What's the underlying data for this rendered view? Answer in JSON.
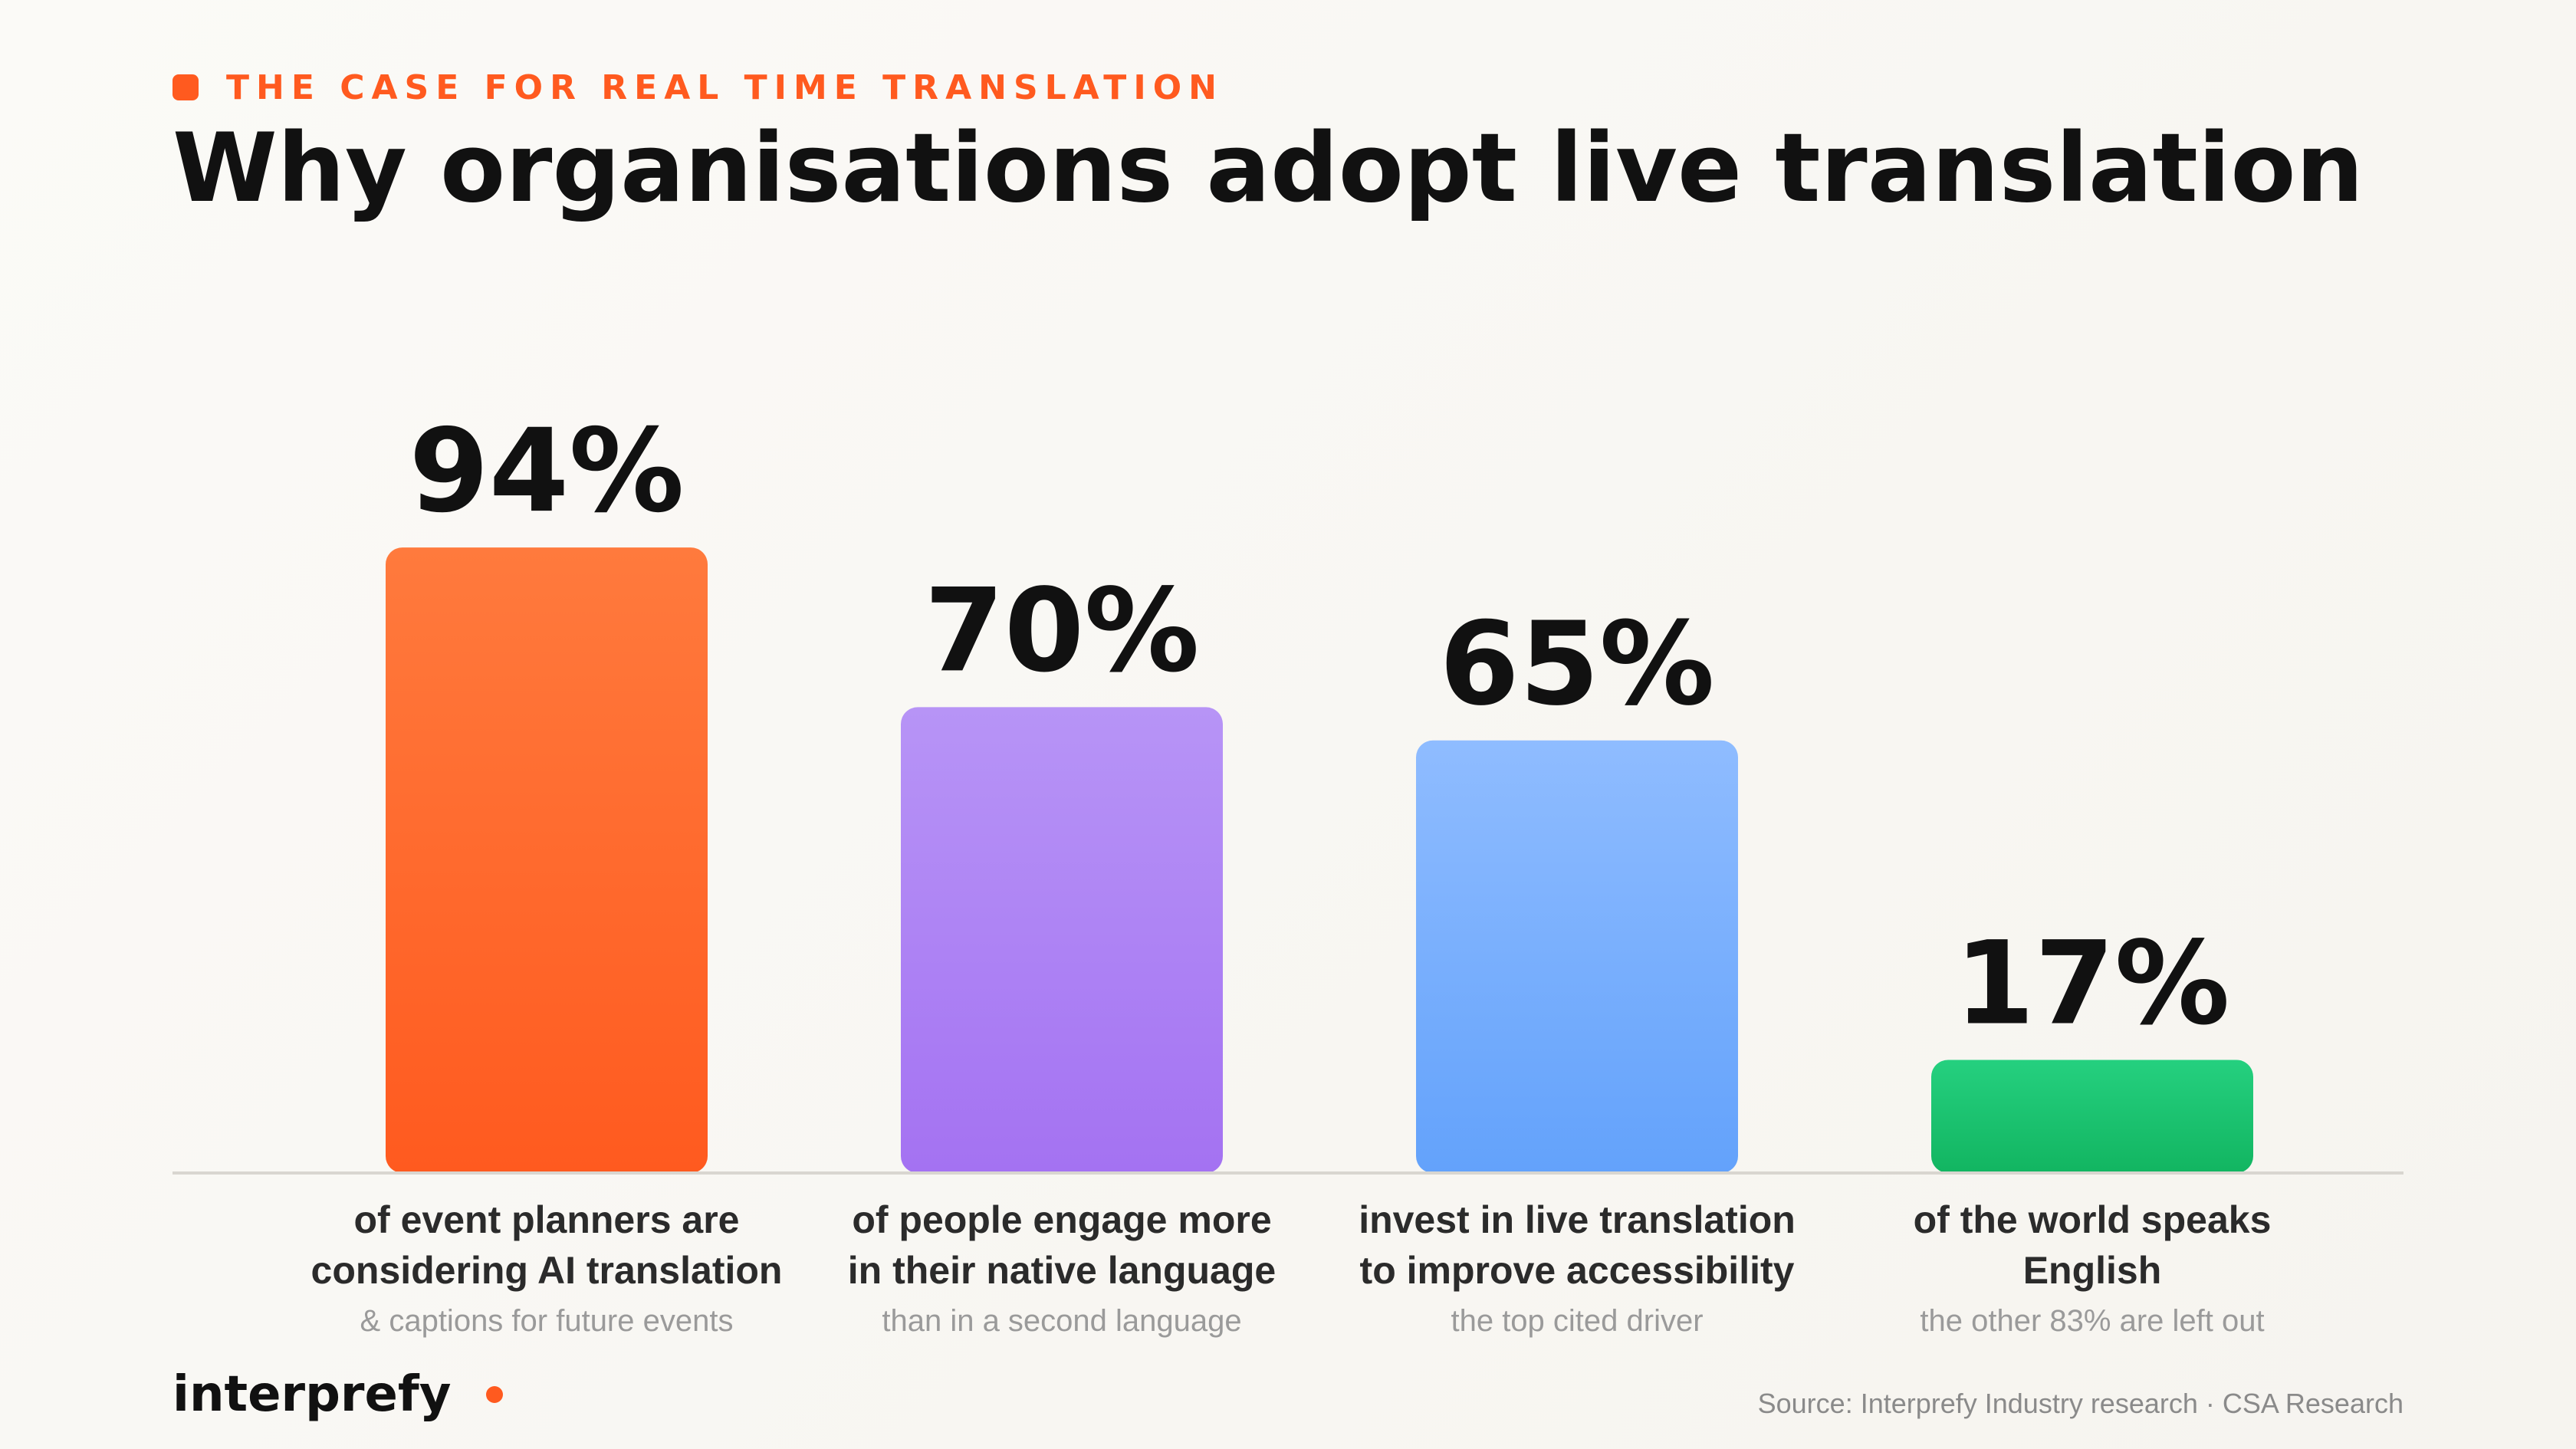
{
  "header": {
    "eyebrow": "THE CASE FOR REAL TIME TRANSLATION",
    "title": "Why organisations adopt live translation"
  },
  "chart_data": {
    "type": "bar",
    "unit": "%",
    "ylim": [
      0,
      100
    ],
    "grid": false,
    "categories": [
      {
        "value": 94,
        "value_label": "94%",
        "label_lines": [
          "of event planners are",
          "considering AI translation"
        ],
        "sub": "& captions for future events",
        "color_top": "#ff7a3d",
        "color_bottom": "#ff5a1f"
      },
      {
        "value": 70,
        "value_label": "70%",
        "label_lines": [
          "of people engage more",
          "in their native language"
        ],
        "sub": "than in a second language",
        "color_top": "#b794f6",
        "color_bottom": "#a472f2"
      },
      {
        "value": 65,
        "value_label": "65%",
        "label_lines": [
          "invest in live translation",
          "to improve accessibility"
        ],
        "sub": "the top cited driver",
        "color_top": "#8fbcff",
        "color_bottom": "#63a2fb"
      },
      {
        "value": 17,
        "value_label": "17%",
        "label_lines": [
          "of the world speaks",
          "English"
        ],
        "sub": "the other 83% are left out",
        "color_top": "#25d07f",
        "color_bottom": "#12b561"
      }
    ]
  },
  "footer": {
    "brand": "interprefy",
    "brand_color": "#ff5a1f",
    "source": "Source: Interprefy Industry research · CSA Research"
  }
}
